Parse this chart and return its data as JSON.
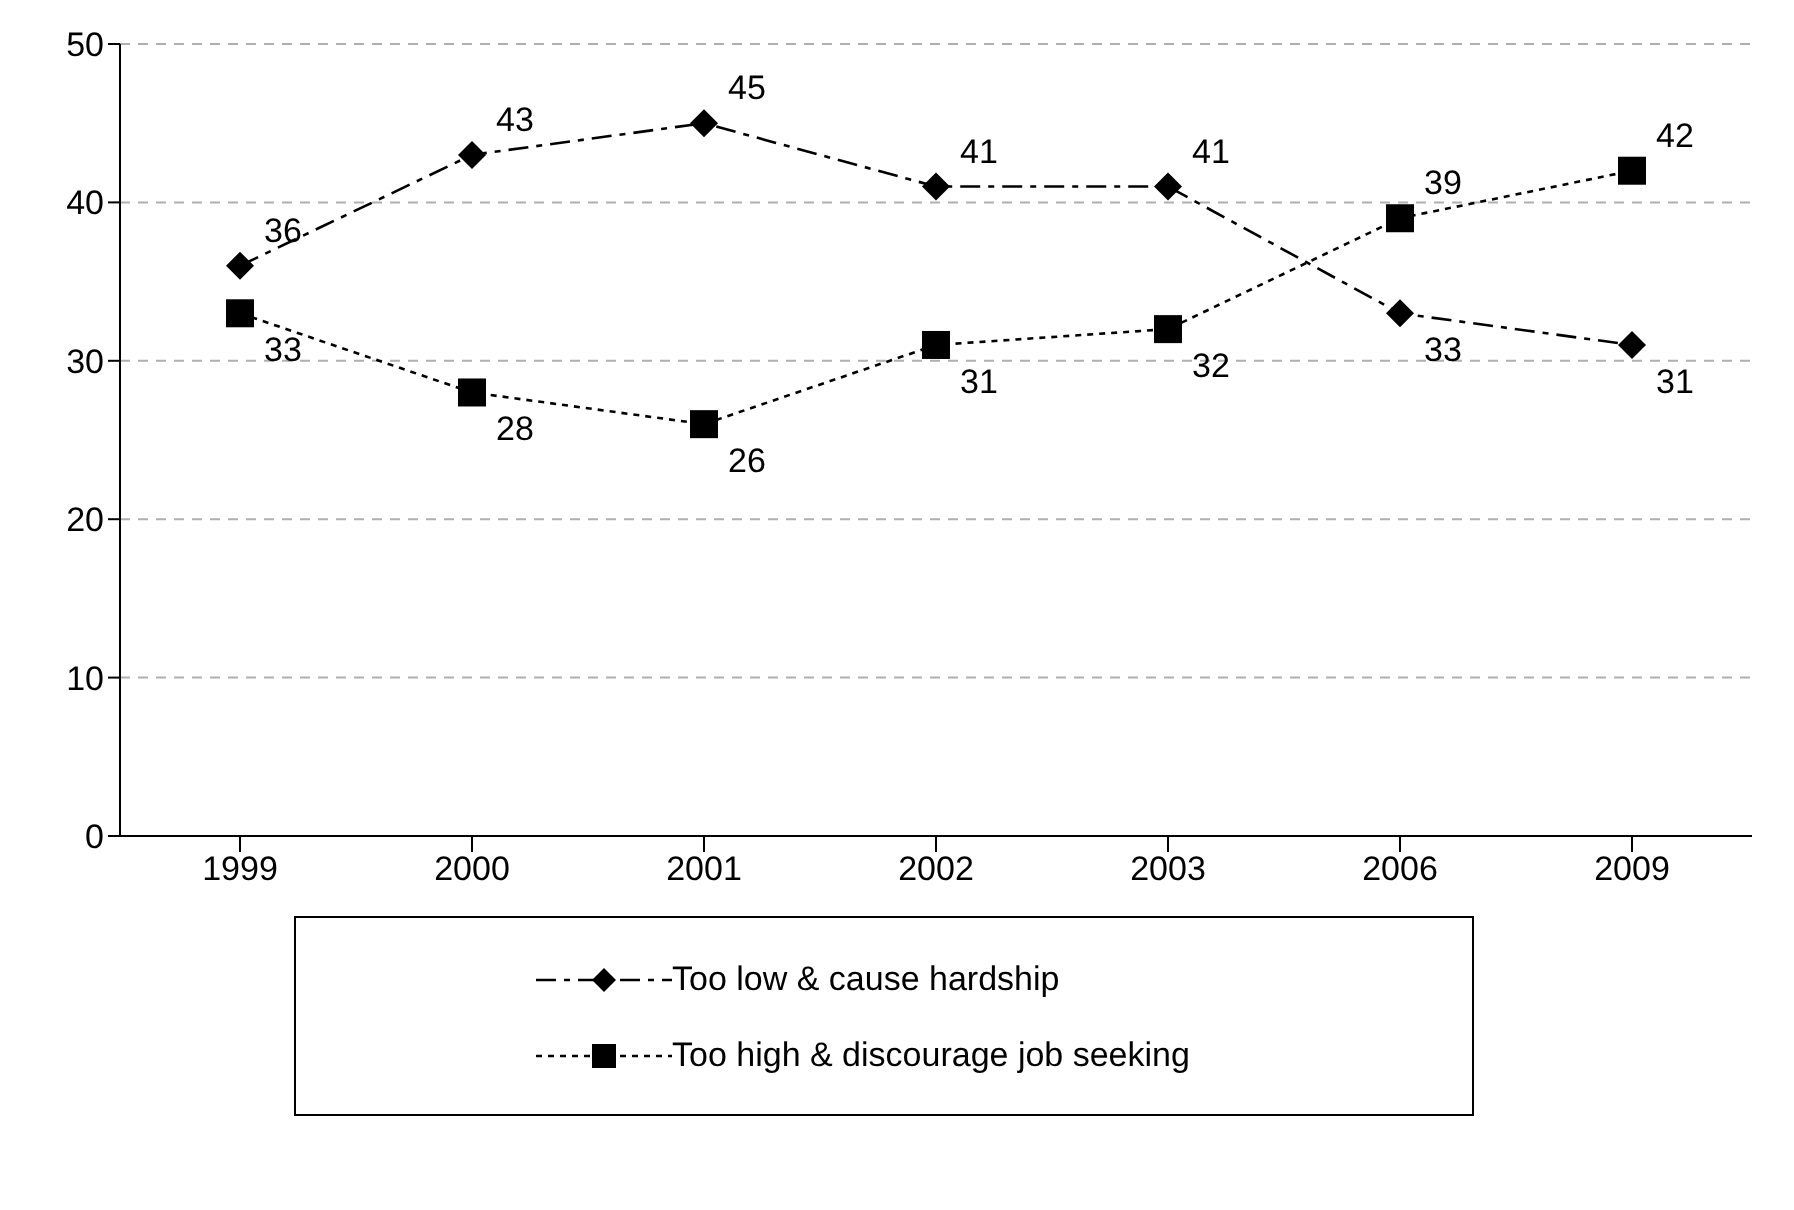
{
  "chart_data": {
    "type": "line",
    "categories": [
      "1999",
      "2000",
      "2001",
      "2002",
      "2003",
      "2006",
      "2009"
    ],
    "series": [
      {
        "name": "Too low & cause hardship",
        "color": "#000000",
        "marker": "diamond",
        "line_style": "dashed",
        "values": [
          36,
          43,
          45,
          41,
          41,
          33,
          31
        ]
      },
      {
        "name": "Too high & discourage job seeking",
        "color": "#000000",
        "marker": "square",
        "line_style": "dotted",
        "values": [
          33,
          28,
          26,
          31,
          32,
          39,
          42
        ]
      }
    ],
    "ylim": [
      0,
      50
    ],
    "yticks": [
      0,
      10,
      20,
      30,
      40,
      50
    ],
    "grid": "y",
    "legend": "bottom",
    "data_labels": true
  }
}
